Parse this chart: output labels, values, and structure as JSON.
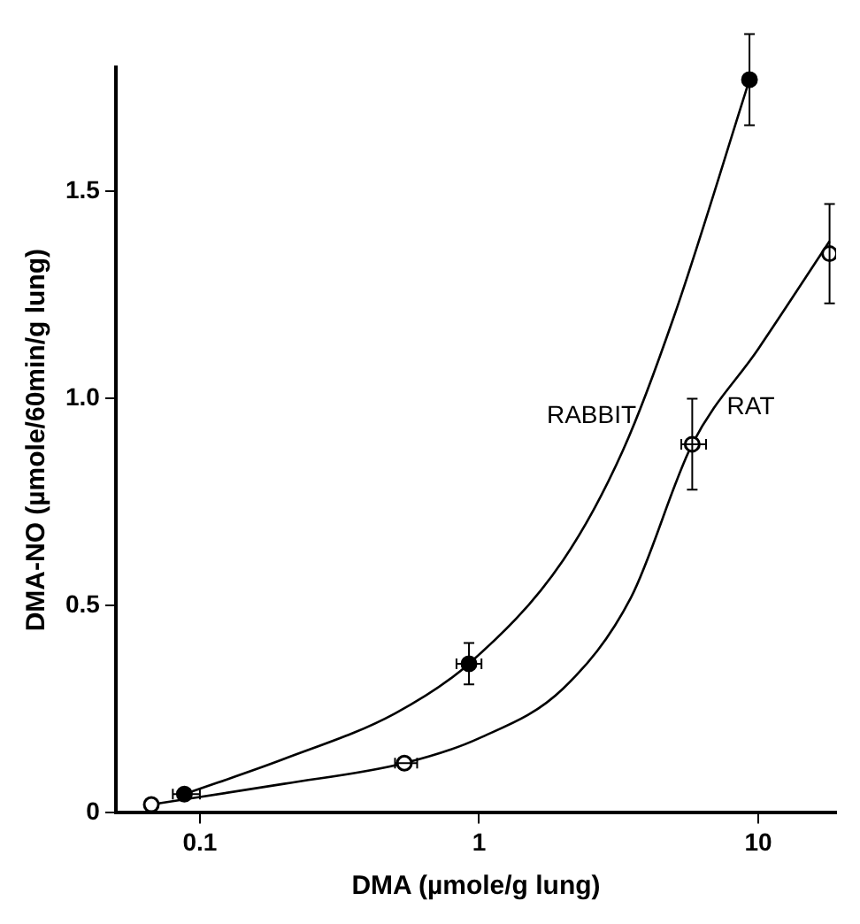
{
  "chart_data": {
    "type": "scatter",
    "xlabel": "DMA (µmole/g lung)",
    "ylabel": "DMA-NO (µmole/60min/g lung)",
    "log": "x",
    "xlim": [
      0.05,
      19
    ],
    "xticks": [
      0.1,
      1,
      10
    ],
    "ylim": [
      0,
      1.8
    ],
    "yticks": [
      {
        "value": 0,
        "label": "0"
      },
      0.5,
      {
        "value": 1,
        "label": "1.0"
      },
      1.5
    ],
    "grid": false,
    "legend": false,
    "marker": "circle",
    "series": [
      {
        "color": "#000000",
        "x": [
          0.088,
          0.92,
          9.3
        ],
        "values": [
          0.045,
          0.36,
          1.77
        ],
        "errors": [
          null,
          0.05,
          0.11
        ],
        "xerrors": [
          [
            0.08,
            0.1
          ],
          [
            0.83,
            1.02
          ],
          null
        ]
      },
      {
        "color": "#000000",
        "x": [
          0.067,
          0.54,
          5.8,
          18
        ],
        "values": [
          0.02,
          0.12,
          0.89,
          1.35
        ],
        "errors": [
          null,
          null,
          0.11,
          0.12
        ],
        "xerrors": [
          null,
          [
            0.5,
            0.6
          ],
          [
            5.3,
            6.5
          ],
          null
        ]
      },
      {
        "name": "RABBIT",
        "type": "line",
        "color": "#000000",
        "marker": "none",
        "line_style": "solid",
        "x": [
          0.088,
          0.2,
          0.5,
          0.92,
          2,
          3.3,
          5,
          9.3
        ],
        "values": [
          0.045,
          0.13,
          0.24,
          0.36,
          0.61,
          0.88,
          1.2,
          1.77
        ]
      },
      {
        "name": "RAT",
        "type": "line",
        "color": "#000000",
        "marker": "none",
        "line_style": "solid",
        "x": [
          0.067,
          0.2,
          0.54,
          1,
          2,
          3.5,
          5.8,
          10,
          18
        ],
        "values": [
          0.02,
          0.07,
          0.12,
          0.18,
          0.3,
          0.52,
          0.89,
          1.12,
          1.38
        ]
      }
    ]
  }
}
